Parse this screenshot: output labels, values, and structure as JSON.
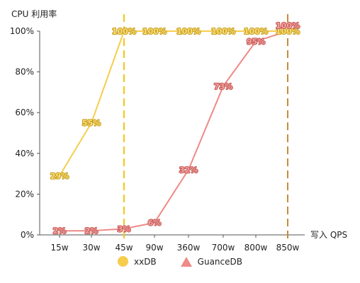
{
  "chart_data": {
    "type": "line",
    "ylabel": "CPU 利用率",
    "xlabel": "写入 QPS",
    "categories": [
      "15w",
      "30w",
      "45w",
      "90w",
      "360w",
      "700w",
      "800w",
      "850w"
    ],
    "y_ticks": [
      "0%",
      "20%",
      "40%",
      "60%",
      "80%",
      "100%"
    ],
    "ylim": [
      0,
      100
    ],
    "grid": false,
    "legend_position": "bottom-center",
    "series": [
      {
        "name": "xxDB",
        "color": "#f6cd4c",
        "marker": "circle",
        "values": [
          29,
          55,
          100,
          100,
          100,
          100,
          100,
          100
        ],
        "labels": [
          "29%",
          "55%",
          "100%",
          "100%",
          "100%",
          "100%",
          "100%",
          "100%"
        ]
      },
      {
        "name": "GuanceDB",
        "color": "#ee8a87",
        "marker": "triangle",
        "values": [
          2,
          2,
          3,
          6,
          32,
          73,
          95,
          100
        ],
        "labels": [
          "2%",
          "2%",
          "3%",
          "6%",
          "32%",
          "73%",
          "95%",
          "100%"
        ]
      }
    ],
    "reference_lines": [
      {
        "category": "45w",
        "color": "#f5c518",
        "style": "dashed"
      },
      {
        "category": "850w",
        "color": "#c98a3a",
        "style": "dashed"
      }
    ]
  }
}
